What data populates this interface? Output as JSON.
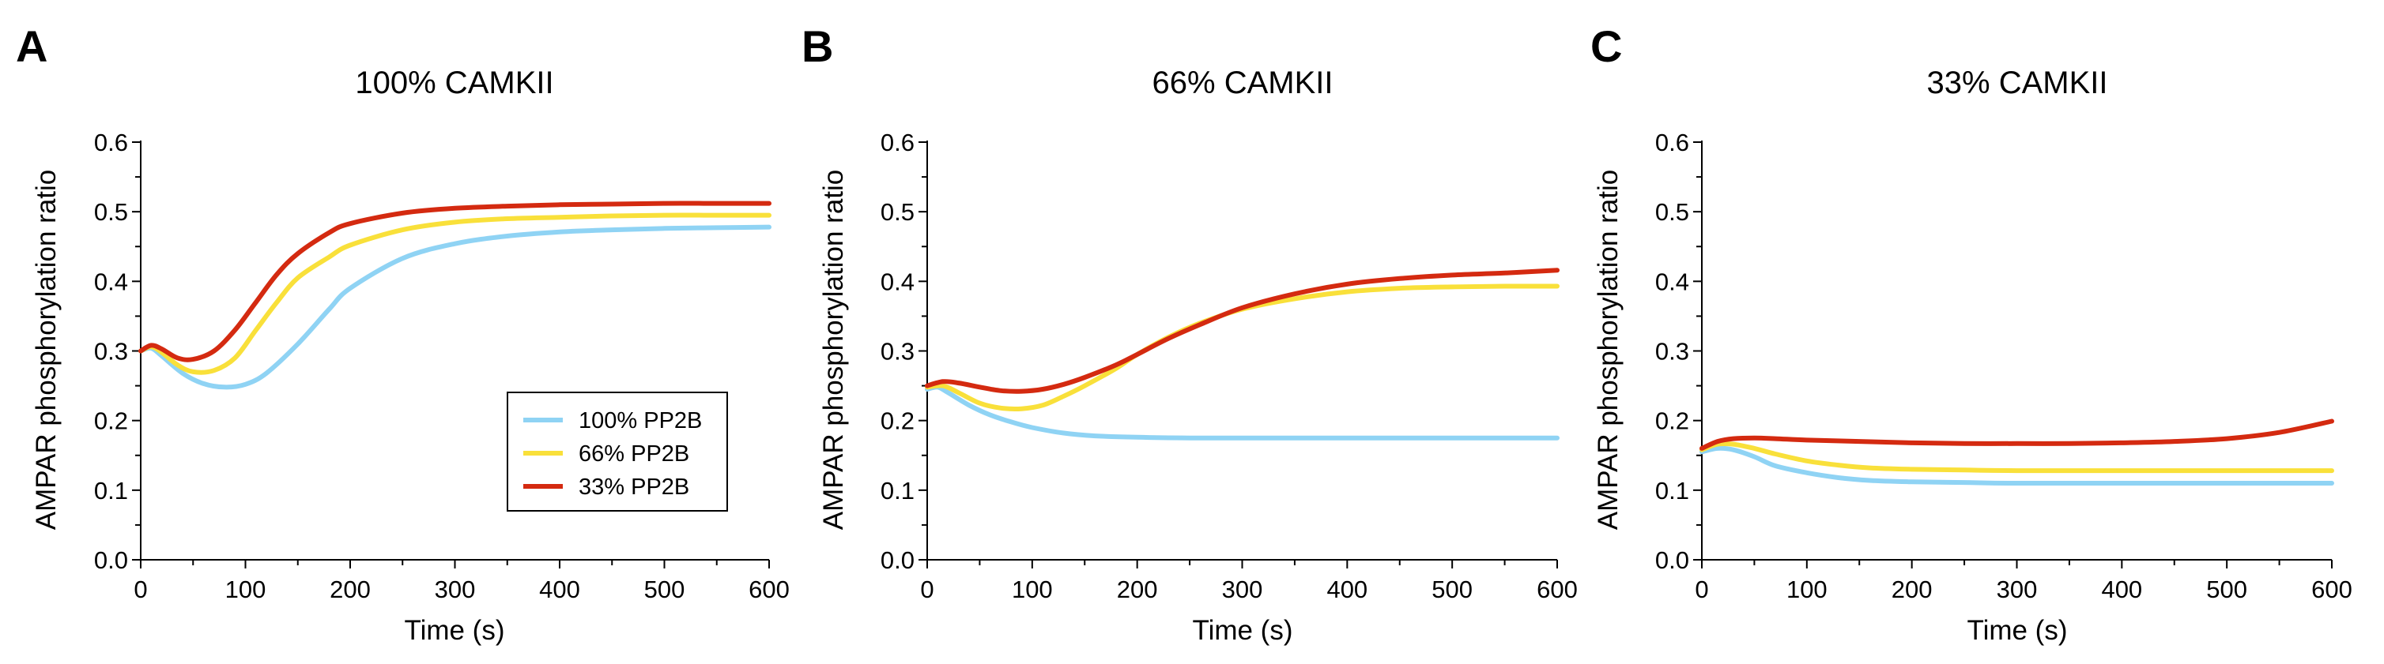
{
  "chart_data": [
    {
      "panel": "A",
      "type": "line",
      "title": "100% CAMKII",
      "xlabel": "Time (s)",
      "ylabel": "AMPAR phosphorylation ratio",
      "xlim": [
        0,
        600
      ],
      "ylim": [
        0,
        0.6
      ],
      "xticks": [
        "0",
        "100",
        "200",
        "300",
        "400",
        "500",
        "600"
      ],
      "yticks": [
        "0.0",
        "0.1",
        "0.2",
        "0.3",
        "0.4",
        "0.5",
        "0.6"
      ],
      "legend": {
        "position": "lower-right",
        "entries": [
          "100% PP2B",
          "66% PP2B",
          "33% PP2B"
        ]
      },
      "series": [
        {
          "name": "100% PP2B",
          "color": "#8fd3f4",
          "x": [
            0,
            10,
            20,
            40,
            60,
            80,
            100,
            120,
            150,
            180,
            200,
            250,
            300,
            350,
            400,
            450,
            500,
            550,
            600
          ],
          "y": [
            0.3,
            0.304,
            0.293,
            0.268,
            0.253,
            0.248,
            0.252,
            0.268,
            0.31,
            0.36,
            0.39,
            0.433,
            0.454,
            0.465,
            0.471,
            0.474,
            0.476,
            0.477,
            0.478
          ]
        },
        {
          "name": "66% PP2B",
          "color": "#f9e03a",
          "x": [
            0,
            10,
            20,
            35,
            50,
            70,
            90,
            110,
            130,
            150,
            180,
            200,
            250,
            300,
            350,
            400,
            450,
            500,
            550,
            600
          ],
          "y": [
            0.3,
            0.306,
            0.298,
            0.28,
            0.27,
            0.272,
            0.29,
            0.33,
            0.37,
            0.405,
            0.435,
            0.452,
            0.474,
            0.485,
            0.49,
            0.492,
            0.494,
            0.495,
            0.495,
            0.495
          ]
        },
        {
          "name": "33% PP2B",
          "color": "#d42a10",
          "x": [
            0,
            10,
            20,
            35,
            50,
            70,
            90,
            110,
            130,
            150,
            180,
            200,
            250,
            300,
            350,
            400,
            450,
            500,
            550,
            600
          ],
          "y": [
            0.3,
            0.308,
            0.303,
            0.29,
            0.288,
            0.3,
            0.33,
            0.37,
            0.41,
            0.44,
            0.47,
            0.483,
            0.498,
            0.505,
            0.508,
            0.51,
            0.511,
            0.512,
            0.512,
            0.512
          ]
        }
      ]
    },
    {
      "panel": "B",
      "type": "line",
      "title": "66% CAMKII",
      "xlabel": "Time (s)",
      "ylabel": "AMPAR phosphorylation ratio",
      "xlim": [
        0,
        600
      ],
      "ylim": [
        0,
        0.6
      ],
      "xticks": [
        "0",
        "100",
        "200",
        "300",
        "400",
        "500",
        "600"
      ],
      "yticks": [
        "0.0",
        "0.1",
        "0.2",
        "0.3",
        "0.4",
        "0.5",
        "0.6"
      ],
      "series": [
        {
          "name": "100% PP2B",
          "color": "#8fd3f4",
          "x": [
            0,
            10,
            20,
            40,
            60,
            80,
            100,
            130,
            160,
            200,
            250,
            300,
            400,
            500,
            600
          ],
          "y": [
            0.245,
            0.248,
            0.24,
            0.222,
            0.208,
            0.198,
            0.19,
            0.182,
            0.178,
            0.176,
            0.175,
            0.175,
            0.175,
            0.175,
            0.175
          ]
        },
        {
          "name": "66% PP2B",
          "color": "#f9e03a",
          "x": [
            0,
            15,
            30,
            50,
            70,
            90,
            110,
            130,
            150,
            180,
            200,
            230,
            260,
            300,
            350,
            400,
            450,
            500,
            550,
            600
          ],
          "y": [
            0.248,
            0.25,
            0.24,
            0.225,
            0.218,
            0.217,
            0.222,
            0.235,
            0.25,
            0.275,
            0.295,
            0.32,
            0.34,
            0.36,
            0.375,
            0.385,
            0.39,
            0.392,
            0.393,
            0.393
          ]
        },
        {
          "name": "33% PP2B",
          "color": "#d42a10",
          "x": [
            0,
            15,
            30,
            50,
            70,
            90,
            110,
            130,
            150,
            180,
            200,
            230,
            260,
            300,
            350,
            400,
            450,
            500,
            550,
            600
          ],
          "y": [
            0.25,
            0.256,
            0.254,
            0.248,
            0.243,
            0.242,
            0.245,
            0.252,
            0.262,
            0.28,
            0.295,
            0.318,
            0.338,
            0.362,
            0.382,
            0.396,
            0.404,
            0.409,
            0.412,
            0.416
          ]
        }
      ]
    },
    {
      "panel": "C",
      "type": "line",
      "title": "33% CAMKII",
      "xlabel": "Time (s)",
      "ylabel": "AMPAR phosphorylation ratio",
      "xlim": [
        0,
        600
      ],
      "ylim": [
        0,
        0.6
      ],
      "xticks": [
        "0",
        "100",
        "200",
        "300",
        "400",
        "500",
        "600"
      ],
      "yticks": [
        "0.0",
        "0.1",
        "0.2",
        "0.3",
        "0.4",
        "0.5",
        "0.6"
      ],
      "series": [
        {
          "name": "100% PP2B",
          "color": "#8fd3f4",
          "x": [
            0,
            15,
            30,
            50,
            70,
            100,
            130,
            160,
            200,
            250,
            300,
            400,
            500,
            600
          ],
          "y": [
            0.155,
            0.16,
            0.158,
            0.148,
            0.135,
            0.125,
            0.118,
            0.114,
            0.112,
            0.111,
            0.11,
            0.11,
            0.11,
            0.11
          ]
        },
        {
          "name": "66% PP2B",
          "color": "#f9e03a",
          "x": [
            0,
            15,
            30,
            50,
            70,
            100,
            130,
            160,
            200,
            250,
            300,
            400,
            500,
            600
          ],
          "y": [
            0.158,
            0.166,
            0.166,
            0.16,
            0.152,
            0.142,
            0.136,
            0.132,
            0.13,
            0.129,
            0.128,
            0.128,
            0.128,
            0.128
          ]
        },
        {
          "name": "33% PP2B",
          "color": "#d42a10",
          "x": [
            0,
            15,
            30,
            50,
            70,
            100,
            150,
            200,
            250,
            300,
            350,
            400,
            450,
            500,
            550,
            600
          ],
          "y": [
            0.16,
            0.17,
            0.174,
            0.175,
            0.174,
            0.172,
            0.17,
            0.168,
            0.167,
            0.167,
            0.167,
            0.168,
            0.17,
            0.174,
            0.183,
            0.199
          ]
        }
      ]
    }
  ]
}
